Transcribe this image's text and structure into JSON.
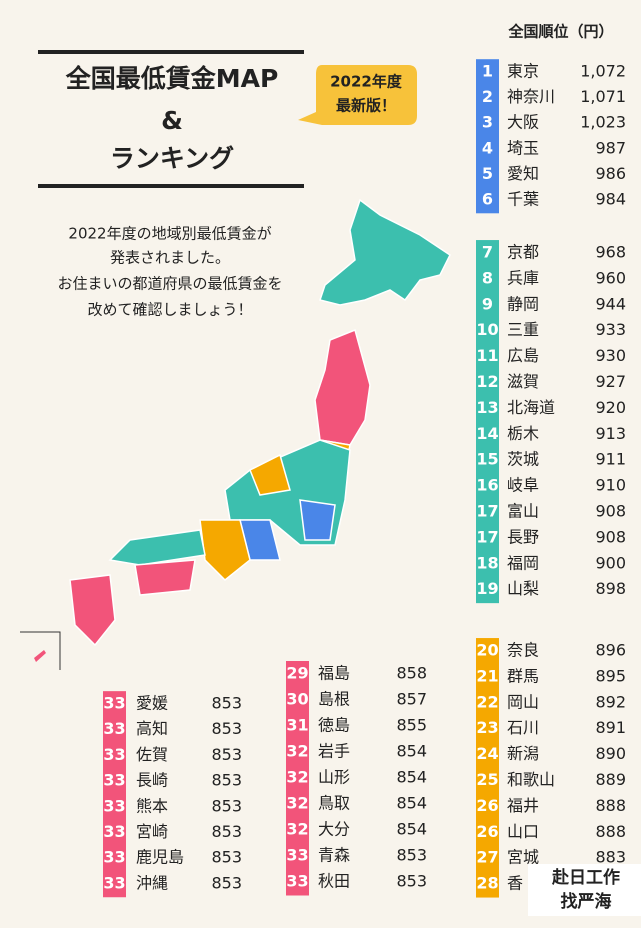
{
  "header": {
    "title": "全国最低賃金MAP",
    "amp": "&",
    "subtitle": "ランキング",
    "badge_line1": "2022年度",
    "badge_line2": "最新版！"
  },
  "intro": [
    "2022年度の地域別最低賃金が",
    "発表されました。",
    "お住まいの都道府県の最低賃金を",
    "改めて確認しましょう！"
  ],
  "ranking_header": "全国順位（円）",
  "groups": [
    {
      "color": "#4a86e8",
      "rows": [
        [
          "1",
          "東京",
          "1,072"
        ],
        [
          "2",
          "神奈川",
          "1,071"
        ],
        [
          "3",
          "大阪",
          "1,023"
        ],
        [
          "4",
          "埼玉",
          "987"
        ],
        [
          "5",
          "愛知",
          "986"
        ],
        [
          "6",
          "千葉",
          "984"
        ]
      ]
    },
    {
      "color": "#3cbfae",
      "rows": [
        [
          "7",
          "京都",
          "968"
        ],
        [
          "8",
          "兵庫",
          "960"
        ],
        [
          "9",
          "静岡",
          "944"
        ],
        [
          "10",
          "三重",
          "933"
        ],
        [
          "11",
          "広島",
          "930"
        ],
        [
          "12",
          "滋賀",
          "927"
        ],
        [
          "13",
          "北海道",
          "920"
        ],
        [
          "14",
          "栃木",
          "913"
        ],
        [
          "15",
          "茨城",
          "911"
        ],
        [
          "16",
          "岐阜",
          "910"
        ],
        [
          "17",
          "富山",
          "908"
        ],
        [
          "17",
          "長野",
          "908"
        ],
        [
          "18",
          "福岡",
          "900"
        ],
        [
          "19",
          "山梨",
          "898"
        ]
      ]
    },
    {
      "color": "#f5a800",
      "rows": [
        [
          "20",
          "奈良",
          "896"
        ],
        [
          "21",
          "群馬",
          "895"
        ],
        [
          "22",
          "岡山",
          "892"
        ],
        [
          "23",
          "石川",
          "891"
        ],
        [
          "24",
          "新潟",
          "890"
        ],
        [
          "25",
          "和歌山",
          "889"
        ],
        [
          "26",
          "福井",
          "888"
        ],
        [
          "26",
          "山口",
          "888"
        ],
        [
          "27",
          "宮城",
          "883"
        ],
        [
          "28",
          "香"
        ]
      ]
    },
    {
      "color": "#f2547a",
      "rows": [
        [
          "29",
          "福島",
          "858"
        ],
        [
          "30",
          "島根",
          "857"
        ],
        [
          "31",
          "徳島",
          "855"
        ],
        [
          "32",
          "岩手",
          "854"
        ],
        [
          "32",
          "山形",
          "854"
        ],
        [
          "32",
          "鳥取",
          "854"
        ],
        [
          "32",
          "大分",
          "854"
        ],
        [
          "33",
          "青森",
          "853"
        ],
        [
          "33",
          "秋田",
          "853"
        ]
      ]
    },
    {
      "color": "#f2547a",
      "rows": [
        [
          "33",
          "愛媛",
          "853"
        ],
        [
          "33",
          "高知",
          "853"
        ],
        [
          "33",
          "佐賀",
          "853"
        ],
        [
          "33",
          "長崎",
          "853"
        ],
        [
          "33",
          "熊本",
          "853"
        ],
        [
          "33",
          "宮崎",
          "853"
        ],
        [
          "33",
          "鹿児島",
          "853"
        ],
        [
          "33",
          "沖縄",
          "853"
        ]
      ]
    }
  ],
  "watermark": [
    "赴日工作",
    "找严海"
  ]
}
